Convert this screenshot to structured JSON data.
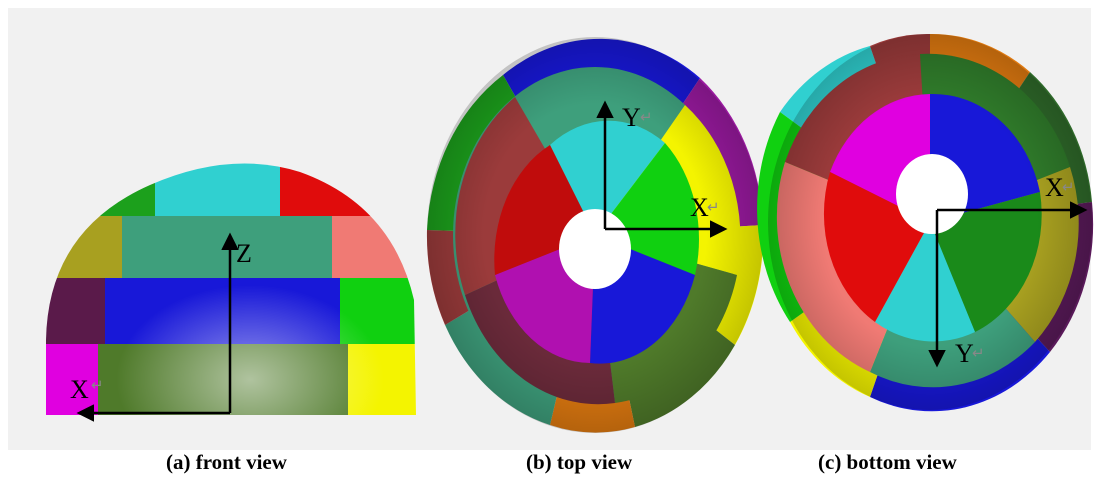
{
  "colors": {
    "background": "#f1f1f1",
    "magenta": "#e000e0",
    "dark_plum": "#5a1a4a",
    "dark_olive_green": "#4f7a2a",
    "olive": "#a8a020",
    "green": "#1ca01c",
    "bright_green": "#10d010",
    "teal": "#3e9f7c",
    "cyan": "#30d0d0",
    "blue": "#1818d8",
    "red": "#e00c0c",
    "salmon": "#f07a74",
    "yellow": "#f4f400",
    "brown_red": "#9b3b3b",
    "purple": "#9a1aa0",
    "orange": "#e07a10"
  },
  "views": [
    {
      "id": "front",
      "caption": "(a) front view",
      "axes": [
        {
          "label": "Z",
          "return_mark": ""
        },
        {
          "label": "X",
          "return_mark": "↵"
        }
      ]
    },
    {
      "id": "top",
      "caption": "(b) top view",
      "axes": [
        {
          "label": "Y",
          "return_mark": "↵"
        },
        {
          "label": "X",
          "return_mark": "↵"
        }
      ]
    },
    {
      "id": "bottom",
      "caption": "(c) bottom view",
      "axes": [
        {
          "label": "X",
          "return_mark": "↵"
        },
        {
          "label": "Y",
          "return_mark": "↵"
        }
      ]
    }
  ]
}
